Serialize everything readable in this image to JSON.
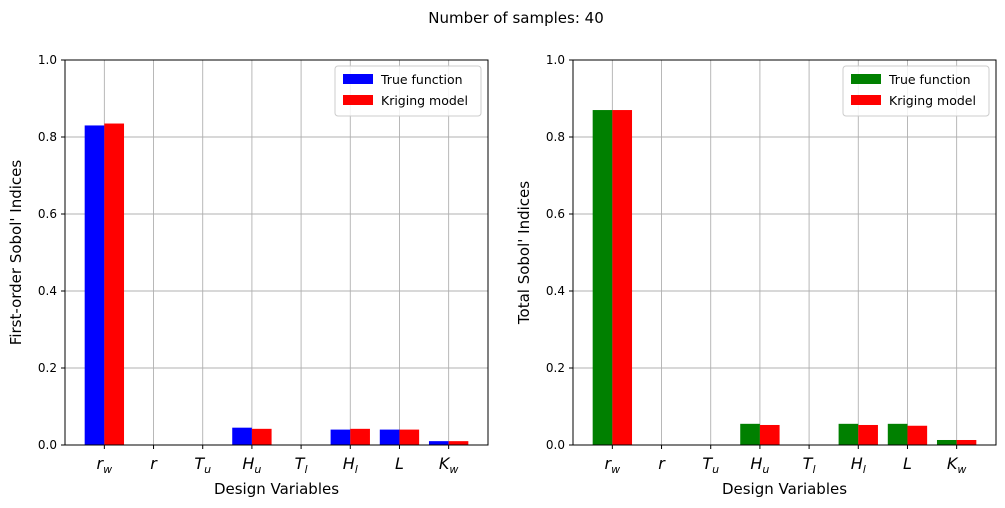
{
  "figure": {
    "suptitle": "Number of samples: 40"
  },
  "chart_data": [
    {
      "type": "bar",
      "title": "",
      "xlabel": "Design Variables",
      "ylabel": "First-order Sobol' Indices",
      "ylim": [
        0,
        1.0
      ],
      "yticks": [
        "0.0",
        "0.2",
        "0.4",
        "0.6",
        "0.8",
        "1.0"
      ],
      "grid": true,
      "legend_position": "top-right",
      "categories": [
        {
          "base": "r",
          "sub": "w"
        },
        {
          "base": "r",
          "sub": ""
        },
        {
          "base": "T",
          "sub": "u"
        },
        {
          "base": "H",
          "sub": "u"
        },
        {
          "base": "T",
          "sub": "l"
        },
        {
          "base": "H",
          "sub": "l"
        },
        {
          "base": "L",
          "sub": ""
        },
        {
          "base": "K",
          "sub": "w"
        }
      ],
      "series": [
        {
          "name": "True function",
          "color": "#0000ff",
          "values": [
            0.83,
            0.0,
            0.0,
            0.045,
            0.0,
            0.04,
            0.04,
            0.01
          ]
        },
        {
          "name": "Kriging model",
          "color": "#ff0000",
          "values": [
            0.835,
            0.0,
            0.0,
            0.042,
            0.0,
            0.042,
            0.04,
            0.01
          ]
        }
      ]
    },
    {
      "type": "bar",
      "title": "",
      "xlabel": "Design Variables",
      "ylabel": "Total Sobol' Indices",
      "ylim": [
        0,
        1.0
      ],
      "yticks": [
        "0.0",
        "0.2",
        "0.4",
        "0.6",
        "0.8",
        "1.0"
      ],
      "grid": true,
      "legend_position": "top-right",
      "categories": [
        {
          "base": "r",
          "sub": "w"
        },
        {
          "base": "r",
          "sub": ""
        },
        {
          "base": "T",
          "sub": "u"
        },
        {
          "base": "H",
          "sub": "u"
        },
        {
          "base": "T",
          "sub": "l"
        },
        {
          "base": "H",
          "sub": "l"
        },
        {
          "base": "L",
          "sub": ""
        },
        {
          "base": "K",
          "sub": "w"
        }
      ],
      "series": [
        {
          "name": "True function",
          "color": "#008000",
          "values": [
            0.87,
            0.0,
            0.0,
            0.055,
            0.0,
            0.055,
            0.055,
            0.013
          ]
        },
        {
          "name": "Kriging model",
          "color": "#ff0000",
          "values": [
            0.87,
            0.0,
            0.0,
            0.052,
            0.0,
            0.052,
            0.05,
            0.013
          ]
        }
      ]
    }
  ]
}
